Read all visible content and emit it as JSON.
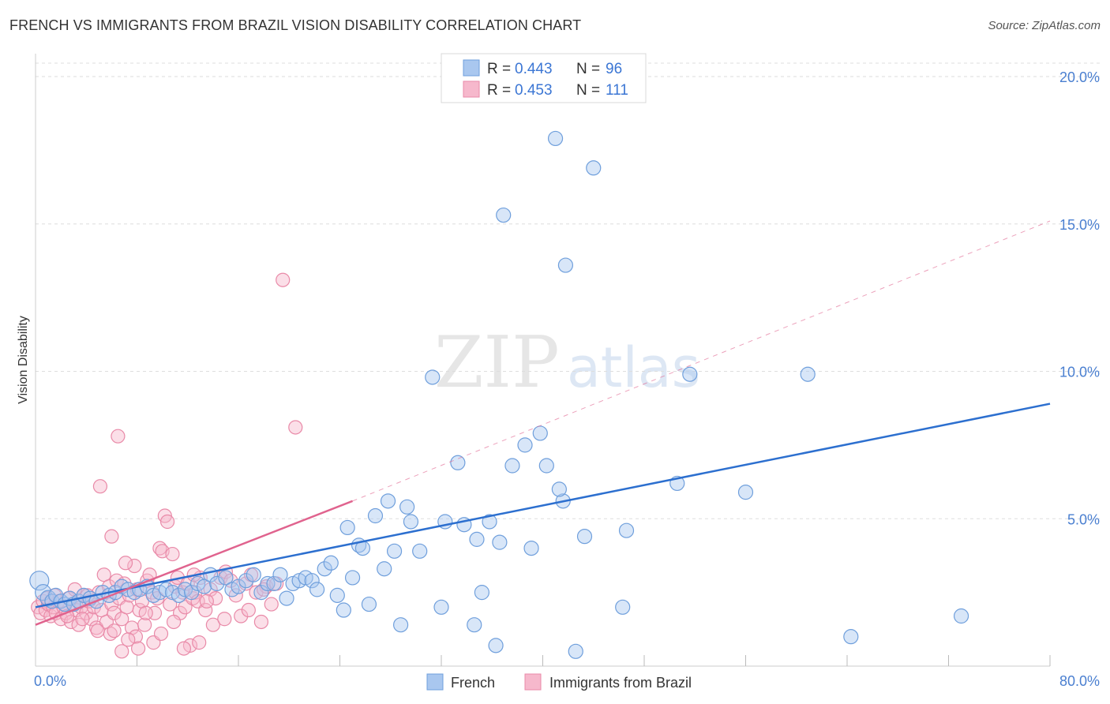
{
  "header": {
    "title": "FRENCH VS IMMIGRANTS FROM BRAZIL VISION DISABILITY CORRELATION CHART",
    "source": "Source: ZipAtlas.com"
  },
  "watermark": {
    "zip": "ZIP",
    "atlas": "atlas"
  },
  "legend": {
    "items": [
      {
        "r_label": "R =",
        "r_value": "0.443",
        "n_label": "N =",
        "n_value": "96"
      },
      {
        "r_label": "R =",
        "r_value": "0.453",
        "n_label": "N =",
        "n_value": "111"
      }
    ]
  },
  "bottom_legend": {
    "french": "French",
    "brazil": "Immigrants from Brazil"
  },
  "colors": {
    "french_fill": "#a9c7ef",
    "french_stroke": "#6f9fdc",
    "french_line": "#2c6fcf",
    "brazil_fill": "#f6b8cc",
    "brazil_stroke": "#e98aa8",
    "brazil_line": "#e0638e",
    "grid": "#dddddd",
    "tick_label": "#4a7fd0"
  },
  "chart_data": {
    "type": "scatter",
    "title": "FRENCH VS IMMIGRANTS FROM BRAZIL VISION DISABILITY CORRELATION CHART",
    "xlabel": "",
    "ylabel": "Vision Disability",
    "xlim": [
      0,
      80
    ],
    "ylim": [
      0,
      20.5
    ],
    "x_tick_labels": [
      "0.0%",
      "80.0%"
    ],
    "y_ticks": [
      5,
      10,
      15,
      20
    ],
    "y_tick_labels": [
      "5.0%",
      "10.0%",
      "15.0%",
      "20.0%"
    ],
    "grid": true,
    "legend_position": "top-center",
    "series": [
      {
        "name": "French",
        "r": 0.443,
        "n": 96,
        "trend": {
          "x": [
            0,
            80
          ],
          "y": [
            2.0,
            8.9
          ]
        },
        "points": [
          [
            0.3,
            2.9
          ],
          [
            0.6,
            2.5
          ],
          [
            1.0,
            2.3
          ],
          [
            1.3,
            2.2
          ],
          [
            1.6,
            2.4
          ],
          [
            2.0,
            2.2
          ],
          [
            2.3,
            2.1
          ],
          [
            2.7,
            2.3
          ],
          [
            3.0,
            2.1
          ],
          [
            3.4,
            2.2
          ],
          [
            3.8,
            2.4
          ],
          [
            4.3,
            2.3
          ],
          [
            4.8,
            2.2
          ],
          [
            5.3,
            2.5
          ],
          [
            5.8,
            2.4
          ],
          [
            6.3,
            2.5
          ],
          [
            6.8,
            2.7
          ],
          [
            7.3,
            2.6
          ],
          [
            7.8,
            2.5
          ],
          [
            8.2,
            2.6
          ],
          [
            8.8,
            2.7
          ],
          [
            9.3,
            2.4
          ],
          [
            9.8,
            2.5
          ],
          [
            10.3,
            2.6
          ],
          [
            10.8,
            2.5
          ],
          [
            11.3,
            2.4
          ],
          [
            11.8,
            2.6
          ],
          [
            12.3,
            2.5
          ],
          [
            12.8,
            2.8
          ],
          [
            13.3,
            2.7
          ],
          [
            13.8,
            3.1
          ],
          [
            14.3,
            2.8
          ],
          [
            15.0,
            3.0
          ],
          [
            15.5,
            2.6
          ],
          [
            16.0,
            2.7
          ],
          [
            16.6,
            2.9
          ],
          [
            17.2,
            3.1
          ],
          [
            17.8,
            2.5
          ],
          [
            18.3,
            2.8
          ],
          [
            18.8,
            2.8
          ],
          [
            19.3,
            3.1
          ],
          [
            19.8,
            2.3
          ],
          [
            20.3,
            2.8
          ],
          [
            20.8,
            2.9
          ],
          [
            21.3,
            3.0
          ],
          [
            21.8,
            2.9
          ],
          [
            22.2,
            2.6
          ],
          [
            22.8,
            3.3
          ],
          [
            23.3,
            3.5
          ],
          [
            23.8,
            2.4
          ],
          [
            24.3,
            1.9
          ],
          [
            24.6,
            4.7
          ],
          [
            25.0,
            3.0
          ],
          [
            25.5,
            4.1
          ],
          [
            25.8,
            4.0
          ],
          [
            26.3,
            2.1
          ],
          [
            26.8,
            5.1
          ],
          [
            27.5,
            3.3
          ],
          [
            27.8,
            5.6
          ],
          [
            28.3,
            3.9
          ],
          [
            28.8,
            1.4
          ],
          [
            29.3,
            5.4
          ],
          [
            29.6,
            4.9
          ],
          [
            30.3,
            3.9
          ],
          [
            31.3,
            9.8
          ],
          [
            32.0,
            2.0
          ],
          [
            32.3,
            4.9
          ],
          [
            33.3,
            6.9
          ],
          [
            33.8,
            4.8
          ],
          [
            34.6,
            1.4
          ],
          [
            34.8,
            4.3
          ],
          [
            35.2,
            2.5
          ],
          [
            35.8,
            4.9
          ],
          [
            36.3,
            0.7
          ],
          [
            36.6,
            4.2
          ],
          [
            37.6,
            6.8
          ],
          [
            38.6,
            7.5
          ],
          [
            39.1,
            4.0
          ],
          [
            39.8,
            7.9
          ],
          [
            40.3,
            6.8
          ],
          [
            41.0,
            17.9
          ],
          [
            41.6,
            5.6
          ],
          [
            41.8,
            13.6
          ],
          [
            41.3,
            6.0
          ],
          [
            42.6,
            0.5
          ],
          [
            43.3,
            4.4
          ],
          [
            44.0,
            16.9
          ],
          [
            46.3,
            2.0
          ],
          [
            46.6,
            4.6
          ],
          [
            50.6,
            6.2
          ],
          [
            51.6,
            9.9
          ],
          [
            56.0,
            5.9
          ],
          [
            60.9,
            9.9
          ],
          [
            64.3,
            1.0
          ],
          [
            73.0,
            1.7
          ],
          [
            36.9,
            15.3
          ]
        ]
      },
      {
        "name": "Immigrants from Brazil",
        "r": 0.453,
        "n": 111,
        "trend": {
          "x": [
            0,
            25
          ],
          "y": [
            1.4,
            5.6
          ]
        },
        "trend_extension": {
          "x": [
            25,
            80
          ],
          "y": [
            5.6,
            15.1
          ]
        },
        "points": [
          [
            0.2,
            2.0
          ],
          [
            0.4,
            1.8
          ],
          [
            0.6,
            2.2
          ],
          [
            0.8,
            1.9
          ],
          [
            1.0,
            2.1
          ],
          [
            1.2,
            1.7
          ],
          [
            1.4,
            2.0
          ],
          [
            1.6,
            1.8
          ],
          [
            1.8,
            2.2
          ],
          [
            2.0,
            1.6
          ],
          [
            2.2,
            2.0
          ],
          [
            2.4,
            1.8
          ],
          [
            2.6,
            2.3
          ],
          [
            2.8,
            1.5
          ],
          [
            3.0,
            2.1
          ],
          [
            3.2,
            1.9
          ],
          [
            3.4,
            1.4
          ],
          [
            3.6,
            2.0
          ],
          [
            3.8,
            2.4
          ],
          [
            4.0,
            1.8
          ],
          [
            4.2,
            2.2
          ],
          [
            4.4,
            1.6
          ],
          [
            4.6,
            2.0
          ],
          [
            4.8,
            1.3
          ],
          [
            5.0,
            2.5
          ],
          [
            5.2,
            1.9
          ],
          [
            5.4,
            3.1
          ],
          [
            5.6,
            1.5
          ],
          [
            5.8,
            2.7
          ],
          [
            6.0,
            2.1
          ],
          [
            6.2,
            1.8
          ],
          [
            6.4,
            2.9
          ],
          [
            6.6,
            2.3
          ],
          [
            6.8,
            1.6
          ],
          [
            7.0,
            2.8
          ],
          [
            7.2,
            2.0
          ],
          [
            7.4,
            2.4
          ],
          [
            7.6,
            1.3
          ],
          [
            7.8,
            3.4
          ],
          [
            8.0,
            2.6
          ],
          [
            8.2,
            1.9
          ],
          [
            8.4,
            2.2
          ],
          [
            8.6,
            1.4
          ],
          [
            8.8,
            2.9
          ],
          [
            9.0,
            3.1
          ],
          [
            9.2,
            2.5
          ],
          [
            9.4,
            1.8
          ],
          [
            9.6,
            2.3
          ],
          [
            9.8,
            4.0
          ],
          [
            10.0,
            3.9
          ],
          [
            10.2,
            5.1
          ],
          [
            10.4,
            4.9
          ],
          [
            10.6,
            2.1
          ],
          [
            10.8,
            3.8
          ],
          [
            11.0,
            2.7
          ],
          [
            11.2,
            3.0
          ],
          [
            11.4,
            1.8
          ],
          [
            11.6,
            2.5
          ],
          [
            11.8,
            2.0
          ],
          [
            12.0,
            2.8
          ],
          [
            12.2,
            0.7
          ],
          [
            12.4,
            2.3
          ],
          [
            12.6,
            2.5
          ],
          [
            12.8,
            2.2
          ],
          [
            13.0,
            3.0
          ],
          [
            13.4,
            1.9
          ],
          [
            13.8,
            2.6
          ],
          [
            14.2,
            2.3
          ],
          [
            14.6,
            3.0
          ],
          [
            15.0,
            3.2
          ],
          [
            15.4,
            2.9
          ],
          [
            15.8,
            2.4
          ],
          [
            16.2,
            1.7
          ],
          [
            16.6,
            2.8
          ],
          [
            17.0,
            3.1
          ],
          [
            17.4,
            2.5
          ],
          [
            17.8,
            1.5
          ],
          [
            18.2,
            2.7
          ],
          [
            18.6,
            2.1
          ],
          [
            19.0,
            2.8
          ],
          [
            19.5,
            13.1
          ],
          [
            20.5,
            8.1
          ],
          [
            6.5,
            7.8
          ],
          [
            5.1,
            6.1
          ],
          [
            6.0,
            4.4
          ],
          [
            7.1,
            3.5
          ],
          [
            12.5,
            3.1
          ],
          [
            13.5,
            2.2
          ],
          [
            14.0,
            1.4
          ],
          [
            16.8,
            1.9
          ],
          [
            18.0,
            2.6
          ],
          [
            11.7,
            0.6
          ],
          [
            7.9,
            1.0
          ],
          [
            8.1,
            0.6
          ],
          [
            6.8,
            0.5
          ],
          [
            9.3,
            0.8
          ],
          [
            5.9,
            1.1
          ],
          [
            4.9,
            1.2
          ],
          [
            3.7,
            1.6
          ],
          [
            2.5,
            1.7
          ],
          [
            1.5,
            2.4
          ],
          [
            0.9,
            2.3
          ],
          [
            3.1,
            2.6
          ],
          [
            4.1,
            2.4
          ],
          [
            6.2,
            1.2
          ],
          [
            8.7,
            1.8
          ],
          [
            10.9,
            1.5
          ],
          [
            12.9,
            0.8
          ],
          [
            14.9,
            1.6
          ],
          [
            7.3,
            0.9
          ],
          [
            9.9,
            1.1
          ]
        ]
      }
    ]
  }
}
